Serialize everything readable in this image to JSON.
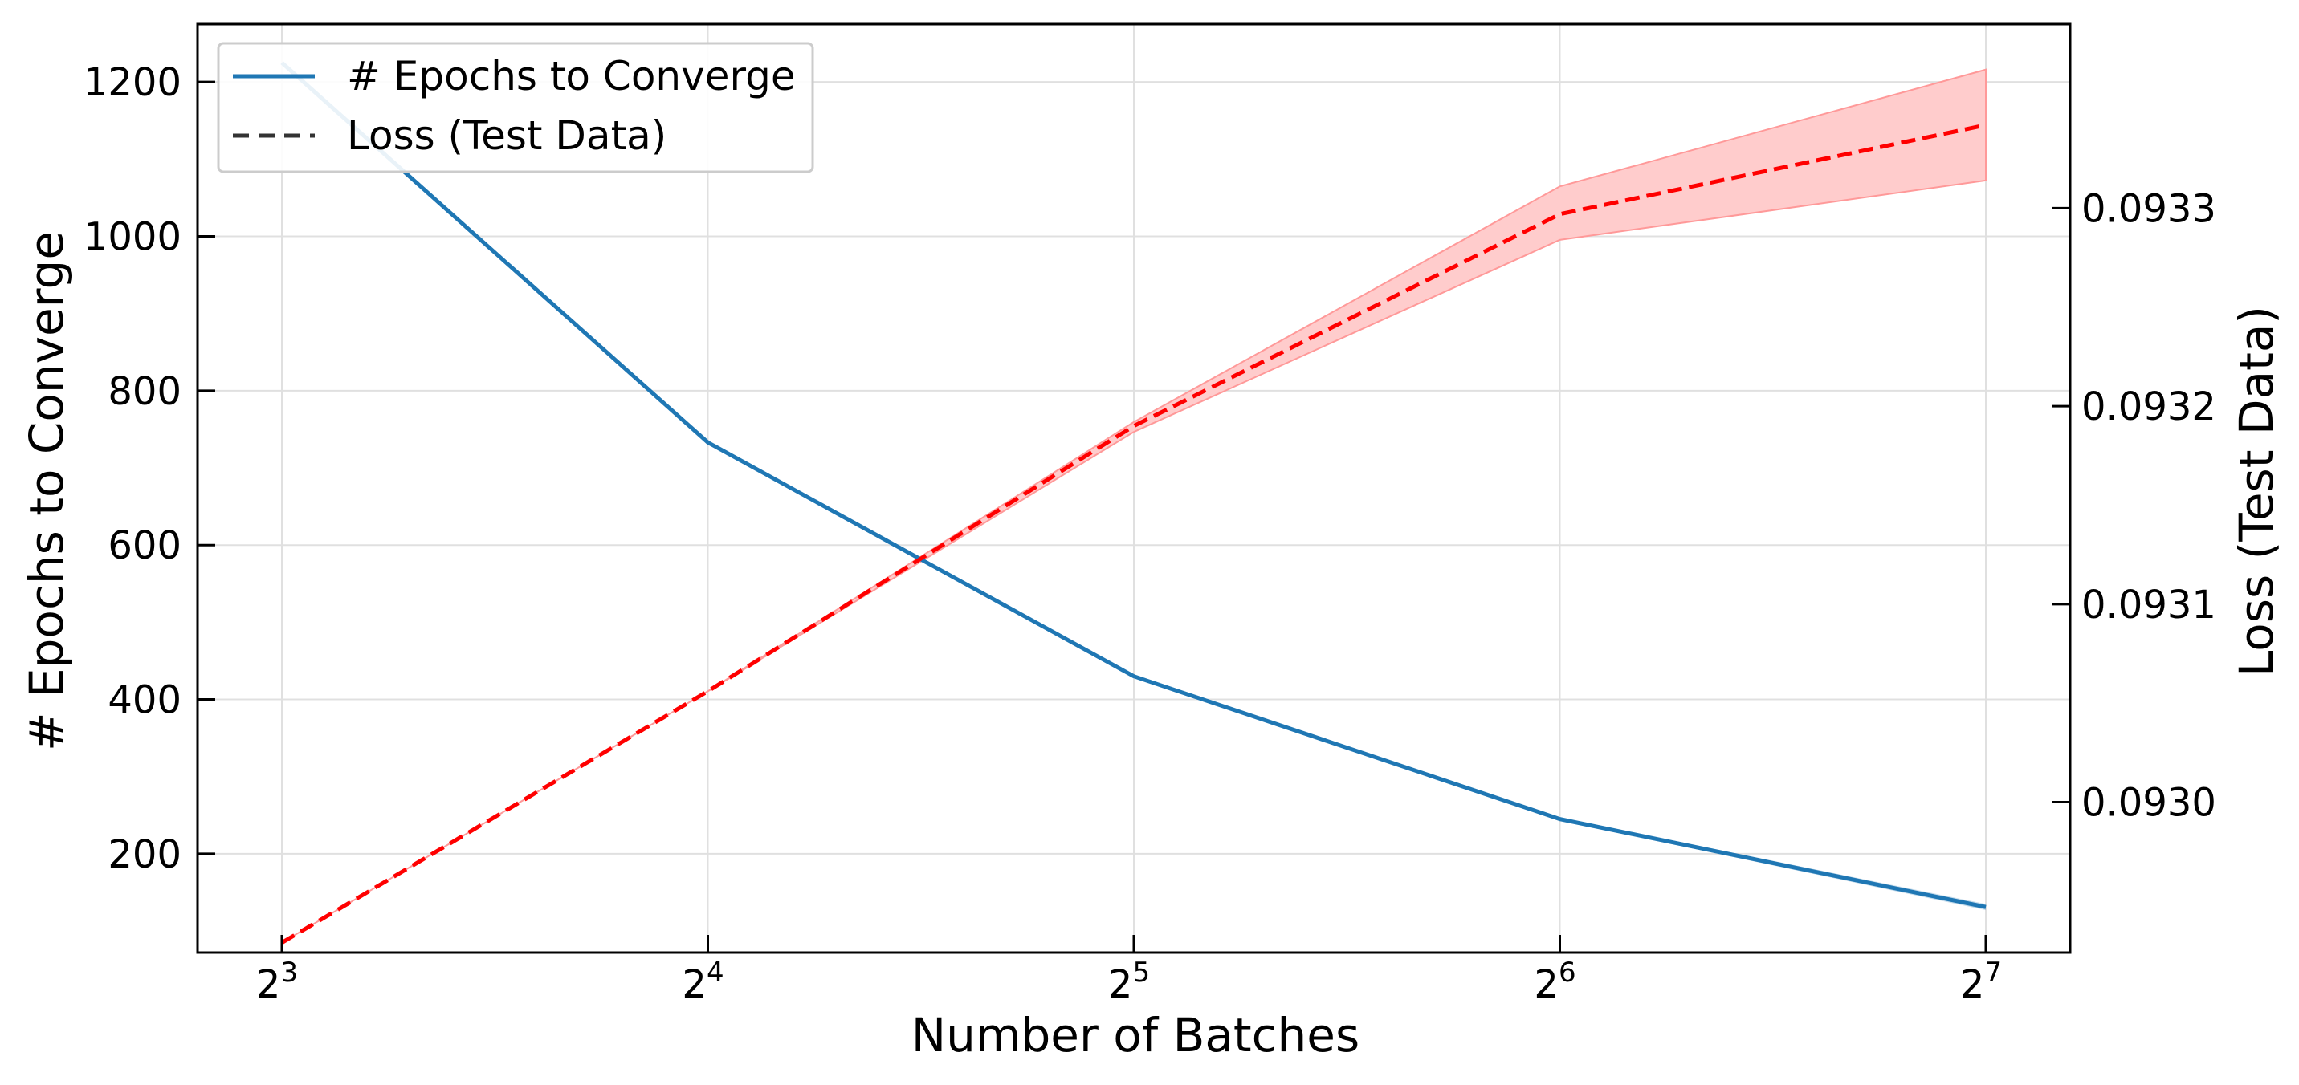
{
  "chart_data": {
    "type": "line",
    "x": [
      8,
      16,
      32,
      64,
      128
    ],
    "x_scale": "log2",
    "xticklabels": [
      {
        "base": "2",
        "exp": "3"
      },
      {
        "base": "2",
        "exp": "4"
      },
      {
        "base": "2",
        "exp": "5"
      },
      {
        "base": "2",
        "exp": "6"
      },
      {
        "base": "2",
        "exp": "7"
      }
    ],
    "xlabel": "Number of Batches",
    "ylabel_left": "# Epochs to Converge",
    "ylabel_right": "Loss (Test Data)",
    "ylim_left": [
      72,
      1275
    ],
    "ylim_right": [
      0.092924,
      0.093393
    ],
    "yticks_left": [
      "200",
      "400",
      "600",
      "800",
      "1000",
      "1200"
    ],
    "yticks_right": [
      "0.0930",
      "0.0931",
      "0.0932",
      "0.0933"
    ],
    "grid": true,
    "legend_position": "top-left",
    "legend": [
      "# Epochs to Converge",
      "Loss (Test Data)"
    ],
    "series": [
      {
        "name": "# Epochs to Converge",
        "axis": "left",
        "style": "solid",
        "color": "#1f77b4",
        "values": [
          1225,
          733,
          430,
          245,
          131
        ],
        "band_low": [
          1225,
          733,
          430,
          243,
          127
        ],
        "band_high": [
          1225,
          733,
          430,
          247,
          135
        ]
      },
      {
        "name": "Loss (Test Data)",
        "axis": "right",
        "style": "dashed",
        "color": "#ff0000",
        "band_color": "#ffcccc",
        "values": [
          0.092929,
          0.093056,
          0.09319,
          0.093297,
          0.093342
        ],
        "band_low": [
          0.092929,
          0.093056,
          0.093187,
          0.093284,
          0.093314
        ],
        "band_high": [
          0.092929,
          0.093056,
          0.093192,
          0.093311,
          0.09337
        ]
      }
    ],
    "legend_handle_color": "#333333"
  }
}
